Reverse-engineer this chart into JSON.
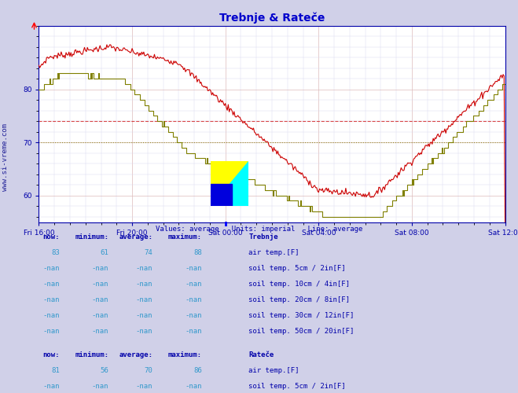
{
  "title": "Trebnje & Rateče",
  "title_color": "#0000cc",
  "bg_color": "#d0d0e8",
  "plot_bg_color": "#ffffff",
  "grid_color_major": "#ddaaaa",
  "grid_color_minor": "#ddddee",
  "axis_color": "#0000aa",
  "ylim": [
    55,
    92
  ],
  "yticks": [
    60,
    70,
    80
  ],
  "xtick_labels": [
    "Fri 16:00",
    "Fri 20:00",
    "Sat 00:00",
    "Sat 04:00",
    "Sat 08:00",
    "Sat 12:00"
  ],
  "xtick_positions": [
    0,
    96,
    192,
    288,
    384,
    480
  ],
  "total_points": 481,
  "trebnje_color": "#cc0000",
  "ratece_color": "#808000",
  "trebnje_avg": 74,
  "trebnje_avg_color": "#cc0000",
  "ratece_avg": 70,
  "ratece_avg_color": "#808000",
  "subtitle1": "Values: average   Units: imperial   Line: average",
  "subtitle1_color": "#0000aa",
  "watermark_text": "www.si-vreme.com",
  "trebnje_stats": {
    "now": 83,
    "min": 61,
    "avg": 74,
    "max": 88
  },
  "ratece_stats": {
    "now": 81,
    "min": 56,
    "avg": 70,
    "max": 86
  },
  "table_header_color": "#0000aa",
  "table_value_color": "#3399cc",
  "legend_colors": {
    "trebnje_air": "#cc0000",
    "trebnje_soil5": "#c8b4b4",
    "trebnje_soil10": "#b08040",
    "trebnje_soil20": "#c07820",
    "trebnje_soil30": "#805820",
    "trebnje_soil50": "#604010",
    "ratece_air": "#808000",
    "ratece_soil5": "#c8c840",
    "ratece_soil10": "#a0a020",
    "ratece_soil20": "#909010",
    "ratece_soil30": "#808008",
    "ratece_soil50": "#686800"
  }
}
